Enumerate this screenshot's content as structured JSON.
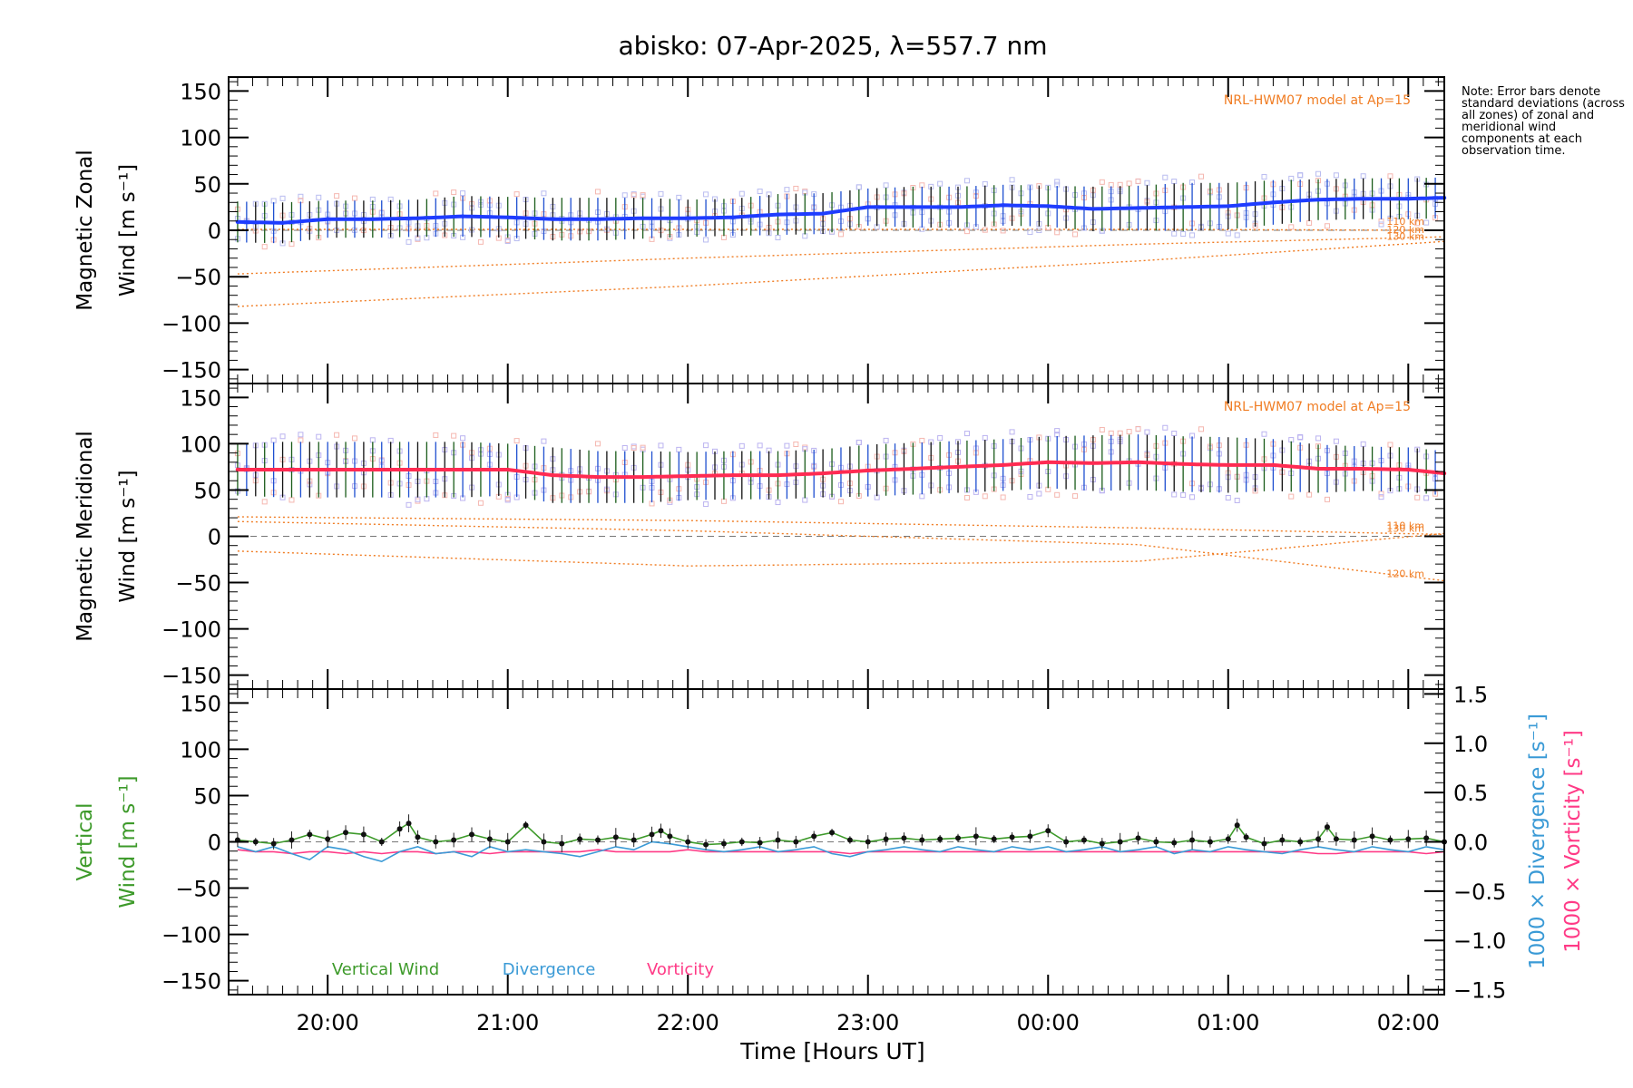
{
  "title": "abisko: 07-Apr-2025, λ=557.7 nm",
  "note": "Note: Error bars denote standard deviations (across all zones) of zonal and meridional wind components at each observation time.",
  "colors": {
    "zonal": "#1e3cff",
    "meridional": "#ff2b52",
    "vertical": "#3d9a2a",
    "divergence": "#3a9ad6",
    "vorticity": "#ff3a86",
    "model": "#f07c22",
    "scatter_zonal": "#b9bcf0",
    "scatter_meridional": "#f5b7b0",
    "scatter_lavender": "#bbb3f0"
  },
  "chart_data": [
    {
      "type": "line",
      "panel": "zonal",
      "ylabel_line1": "Magnetic Zonal",
      "ylabel_line2": "Wind [m s⁻¹]",
      "model_label": "NRL-HWM07 model at Ap=15",
      "xlim": [
        19.45,
        26.2
      ],
      "ylim": [
        -165,
        165
      ],
      "yticks": [
        150,
        100,
        50,
        0,
        -50,
        -100,
        -150
      ],
      "ytick_labels": [
        "150",
        "100",
        "50",
        "0",
        "−50",
        "−100",
        "−150"
      ],
      "series": {
        "x": [
          19.5,
          19.75,
          20.0,
          20.25,
          20.5,
          20.75,
          21.0,
          21.25,
          21.5,
          21.75,
          22.0,
          22.25,
          22.5,
          22.75,
          23.0,
          23.25,
          23.5,
          23.75,
          24.0,
          24.25,
          24.5,
          24.75,
          25.0,
          25.25,
          25.5,
          25.75,
          26.0,
          26.2
        ],
        "y": [
          9,
          8,
          12,
          12,
          13,
          15,
          14,
          12,
          12,
          13,
          13,
          14,
          17,
          18,
          25,
          25,
          25,
          27,
          26,
          23,
          24,
          25,
          26,
          30,
          33,
          34,
          34,
          35
        ],
        "err": [
          22,
          22,
          20,
          20,
          20,
          22,
          22,
          23,
          23,
          22,
          20,
          20,
          22,
          22,
          20,
          22,
          22,
          22,
          22,
          24,
          24,
          26,
          25,
          24,
          22,
          22,
          22,
          22
        ]
      },
      "model_curves": [
        {
          "label": "110 km",
          "x": [
            19.5,
            22.0,
            24.5,
            26.2
          ],
          "y": [
            1,
            1,
            1,
            0
          ]
        },
        {
          "label": "120 km",
          "x": [
            19.5,
            22.0,
            24.5,
            26.2
          ],
          "y": [
            -47,
            -30,
            -15,
            -7
          ]
        },
        {
          "label": "130 km",
          "x": [
            19.5,
            22.0,
            24.5,
            26.2
          ],
          "y": [
            -82,
            -60,
            -33,
            -12
          ]
        }
      ]
    },
    {
      "type": "line",
      "panel": "meridional",
      "ylabel_line1": "Magnetic Meridional",
      "ylabel_line2": "Wind [m s⁻¹]",
      "model_label": "NRL-HWM07 model at Ap=15",
      "xlim": [
        19.45,
        26.2
      ],
      "ylim": [
        -165,
        165
      ],
      "yticks": [
        150,
        100,
        50,
        0,
        -50,
        -100,
        -150
      ],
      "ytick_labels": [
        "150",
        "100",
        "50",
        "0",
        "−50",
        "−100",
        "−150"
      ],
      "series": {
        "x": [
          19.5,
          19.75,
          20.0,
          20.25,
          20.5,
          20.75,
          21.0,
          21.25,
          21.5,
          21.75,
          22.0,
          22.25,
          22.5,
          22.75,
          23.0,
          23.25,
          23.5,
          23.75,
          24.0,
          24.25,
          24.5,
          24.75,
          25.0,
          25.25,
          25.5,
          25.75,
          26.0,
          26.2
        ],
        "y": [
          72,
          72,
          72,
          72,
          72,
          72,
          72,
          66,
          64,
          64,
          65,
          66,
          66,
          68,
          71,
          73,
          75,
          77,
          80,
          79,
          80,
          78,
          77,
          77,
          73,
          73,
          72,
          68
        ],
        "err": [
          28,
          30,
          30,
          30,
          30,
          30,
          28,
          30,
          28,
          28,
          26,
          26,
          26,
          26,
          28,
          28,
          28,
          28,
          28,
          30,
          30,
          30,
          30,
          28,
          26,
          24,
          24,
          24
        ]
      },
      "model_curves": [
        {
          "label": "110 km",
          "x": [
            19.5,
            22.0,
            24.5,
            26.2
          ],
          "y": [
            21,
            17,
            9,
            2
          ]
        },
        {
          "label": "120 km",
          "x": [
            19.5,
            22.0,
            24.5,
            26.2
          ],
          "y": [
            16,
            6,
            -9,
            -48
          ]
        },
        {
          "label": "130 km",
          "x": [
            19.5,
            22.0,
            24.5,
            26.2
          ],
          "y": [
            -16,
            -32,
            -27,
            3
          ]
        }
      ]
    },
    {
      "type": "line",
      "panel": "vertical",
      "ylabel_line1": "Vertical",
      "ylabel_line2": "Wind [m s⁻¹]",
      "ylabel_right1": "1000 × Divergence [s⁻¹]",
      "ylabel_right2": "1000 × Vorticity [s⁻¹]",
      "xlim": [
        19.45,
        26.2
      ],
      "ylim": [
        -165,
        165
      ],
      "yticks": [
        150,
        100,
        50,
        0,
        -50,
        -100,
        -150
      ],
      "ytick_labels": [
        "150",
        "100",
        "50",
        "0",
        "−50",
        "−100",
        "−150"
      ],
      "y2lim": [
        -1.55,
        1.55
      ],
      "y2ticks": [
        1.5,
        1.0,
        0.5,
        0.0,
        -0.5,
        -1.0,
        -1.5
      ],
      "y2tick_labels": [
        "1.5",
        "1.0",
        "0.5",
        "0.0",
        "−0.5",
        "−1.0",
        "−1.5"
      ],
      "xticks": [
        20,
        21,
        22,
        23,
        24,
        25,
        26
      ],
      "xtick_labels": [
        "20:00",
        "21:00",
        "22:00",
        "23:00",
        "00:00",
        "01:00",
        "02:00"
      ],
      "xlabel": "Time [Hours UT]",
      "legend": [
        "Vertical Wind",
        "Divergence",
        "Vorticity"
      ],
      "series": [
        {
          "name": "Vertical Wind",
          "x": [
            19.5,
            19.6,
            19.7,
            19.8,
            19.9,
            20.0,
            20.1,
            20.2,
            20.3,
            20.4,
            20.45,
            20.5,
            20.6,
            20.7,
            20.8,
            20.9,
            21.0,
            21.1,
            21.2,
            21.3,
            21.4,
            21.5,
            21.6,
            21.7,
            21.8,
            21.85,
            21.9,
            22.0,
            22.1,
            22.2,
            22.3,
            22.4,
            22.5,
            22.6,
            22.7,
            22.8,
            22.9,
            23.0,
            23.1,
            23.2,
            23.3,
            23.4,
            23.5,
            23.6,
            23.7,
            23.8,
            23.9,
            24.0,
            24.1,
            24.2,
            24.3,
            24.4,
            24.5,
            24.6,
            24.7,
            24.8,
            24.9,
            25.0,
            25.05,
            25.1,
            25.2,
            25.3,
            25.4,
            25.5,
            25.55,
            25.6,
            25.7,
            25.8,
            25.9,
            26.0,
            26.1,
            26.2
          ],
          "y": [
            2,
            0,
            -2,
            2,
            8,
            3,
            10,
            8,
            0,
            14,
            20,
            5,
            0,
            2,
            8,
            3,
            0,
            18,
            0,
            -2,
            3,
            2,
            5,
            2,
            8,
            12,
            6,
            0,
            -3,
            -2,
            0,
            -1,
            2,
            0,
            6,
            10,
            2,
            0,
            3,
            4,
            2,
            3,
            4,
            6,
            3,
            5,
            6,
            12,
            0,
            2,
            -2,
            0,
            4,
            0,
            -1,
            2,
            0,
            3,
            18,
            5,
            -2,
            2,
            0,
            3,
            16,
            3,
            2,
            6,
            2,
            3,
            4,
            0
          ]
        },
        {
          "name": "Divergence",
          "x": [
            19.5,
            19.6,
            19.7,
            19.8,
            19.9,
            20.0,
            20.1,
            20.2,
            20.3,
            20.4,
            20.5,
            20.6,
            20.7,
            20.8,
            20.9,
            21.0,
            21.1,
            21.2,
            21.3,
            21.4,
            21.5,
            21.6,
            21.7,
            21.8,
            21.9,
            22.0,
            22.1,
            22.2,
            22.3,
            22.4,
            22.5,
            22.6,
            22.7,
            22.8,
            22.9,
            23.0,
            23.1,
            23.2,
            23.3,
            23.4,
            23.5,
            23.6,
            23.7,
            23.8,
            23.9,
            24.0,
            24.1,
            24.2,
            24.3,
            24.4,
            24.5,
            24.6,
            24.7,
            24.8,
            24.9,
            25.0,
            25.1,
            25.2,
            25.3,
            25.4,
            25.5,
            25.6,
            25.7,
            25.8,
            25.9,
            26.0,
            26.1,
            26.2
          ],
          "y": [
            -0.05,
            -0.1,
            -0.05,
            -0.12,
            -0.18,
            -0.05,
            -0.08,
            -0.15,
            -0.2,
            -0.1,
            -0.05,
            -0.12,
            -0.1,
            -0.15,
            -0.05,
            -0.1,
            -0.08,
            -0.1,
            -0.12,
            -0.15,
            -0.1,
            -0.05,
            -0.08,
            0.0,
            -0.02,
            -0.05,
            -0.08,
            -0.1,
            -0.08,
            -0.05,
            -0.1,
            -0.08,
            -0.05,
            -0.12,
            -0.15,
            -0.1,
            -0.08,
            -0.05,
            -0.08,
            -0.1,
            -0.05,
            -0.08,
            -0.1,
            -0.05,
            -0.08,
            -0.05,
            -0.1,
            -0.08,
            -0.05,
            -0.1,
            -0.08,
            -0.05,
            -0.12,
            -0.08,
            -0.1,
            -0.05,
            -0.08,
            -0.1,
            -0.12,
            -0.08,
            -0.05,
            -0.08,
            -0.1,
            -0.05,
            -0.08,
            -0.1,
            -0.05,
            -0.08
          ]
        },
        {
          "name": "Vorticity",
          "x": [
            19.5,
            19.6,
            19.7,
            19.8,
            19.9,
            20.0,
            20.1,
            20.2,
            20.3,
            20.4,
            20.5,
            20.6,
            20.7,
            20.8,
            20.9,
            21.0,
            21.1,
            21.2,
            21.3,
            21.4,
            21.5,
            21.6,
            21.7,
            21.8,
            21.9,
            22.0,
            22.1,
            22.2,
            22.3,
            22.4,
            22.5,
            22.6,
            22.7,
            22.8,
            22.9,
            23.0,
            23.1,
            23.2,
            23.3,
            23.4,
            23.5,
            23.6,
            23.7,
            23.8,
            23.9,
            24.0,
            24.1,
            24.2,
            24.3,
            24.4,
            24.5,
            24.6,
            24.7,
            24.8,
            24.9,
            25.0,
            25.1,
            25.2,
            25.3,
            25.4,
            25.5,
            25.6,
            25.7,
            25.8,
            25.9,
            26.0,
            26.1,
            26.2
          ],
          "y": [
            -0.08,
            -0.1,
            -0.1,
            -0.12,
            -0.1,
            -0.1,
            -0.12,
            -0.1,
            -0.12,
            -0.1,
            -0.1,
            -0.12,
            -0.1,
            -0.1,
            -0.12,
            -0.1,
            -0.1,
            -0.1,
            -0.1,
            -0.1,
            -0.08,
            -0.1,
            -0.1,
            -0.1,
            -0.1,
            -0.08,
            -0.1,
            -0.1,
            -0.1,
            -0.1,
            -0.1,
            -0.1,
            -0.1,
            -0.1,
            -0.12,
            -0.1,
            -0.1,
            -0.1,
            -0.1,
            -0.1,
            -0.1,
            -0.1,
            -0.1,
            -0.1,
            -0.1,
            -0.1,
            -0.1,
            -0.1,
            -0.1,
            -0.1,
            -0.1,
            -0.1,
            -0.1,
            -0.1,
            -0.1,
            -0.1,
            -0.1,
            -0.1,
            -0.1,
            -0.1,
            -0.12,
            -0.12,
            -0.1,
            -0.1,
            -0.1,
            -0.1,
            -0.12,
            -0.1
          ]
        }
      ]
    }
  ]
}
